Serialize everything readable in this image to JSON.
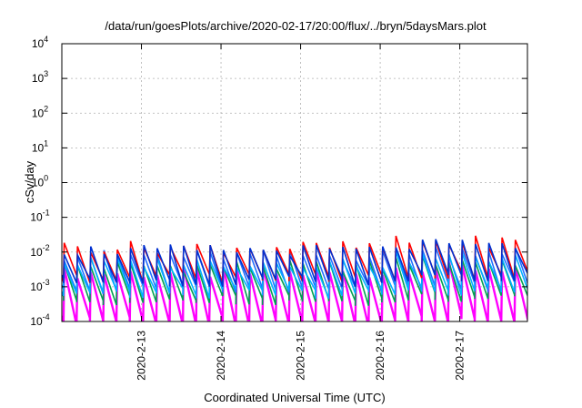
{
  "chart_data": {
    "type": "line",
    "title": "/data/run/goesPlots/archive/2020-02-17/20:00/flux/../bryn/5daysMars.plot",
    "xlabel": "Coordinated Universal Time (UTC)",
    "ylabel": "cSv/day",
    "yscale": "log",
    "ylim": [
      0.0001,
      10000
    ],
    "xlim": [
      0.0,
      5.85
    ],
    "grid": true,
    "x_ticks": [
      {
        "label": "2020-2-13",
        "x": 1.0
      },
      {
        "label": "2020-2-14",
        "x": 2.0
      },
      {
        "label": "2020-2-15",
        "x": 3.0
      },
      {
        "label": "2020-2-16",
        "x": 4.0
      },
      {
        "label": "2020-2-17",
        "x": 5.0
      }
    ],
    "y_ticks": [
      {
        "mant": "10",
        "exp": "-4",
        "v": -4
      },
      {
        "mant": "10",
        "exp": "-3",
        "v": -3
      },
      {
        "mant": "10",
        "exp": "-2",
        "v": -2
      },
      {
        "mant": "10",
        "exp": "-1",
        "v": -1
      },
      {
        "mant": "10",
        "exp": "0",
        "v": 0
      },
      {
        "mant": "10",
        "exp": "1",
        "v": 1
      },
      {
        "mant": "10",
        "exp": "2",
        "v": 2
      },
      {
        "mant": "10",
        "exp": "3",
        "v": 3
      },
      {
        "mant": "10",
        "exp": "4",
        "v": 4
      }
    ],
    "series_colors": [
      "#ff00ff",
      "#00a050",
      "#1f6fff",
      "#00b0ff",
      "#ff0000",
      "#0030d0"
    ],
    "sawtooth": {
      "period_days": 0.1667,
      "phase_days": 0.02,
      "series_ranges": [
        {
          "peak_log": -2.6,
          "trough_log": -4.0
        },
        {
          "peak_log": -2.4,
          "trough_log": -3.4
        },
        {
          "peak_log": -2.1,
          "trough_log": -3.1
        },
        {
          "peak_log": -2.3,
          "trough_log": -3.2
        },
        {
          "peak_log": -1.85,
          "trough_log": -2.75
        },
        {
          "peak_log": -1.95,
          "trough_log": -2.85
        }
      ],
      "late_boost_start_day": 4.15,
      "late_boost_log": 0.15
    }
  }
}
